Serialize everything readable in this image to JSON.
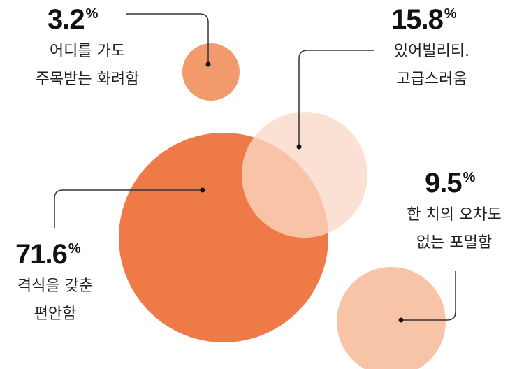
{
  "chart_data": {
    "type": "bubble",
    "unit": "%",
    "items": [
      {
        "value": 3.2,
        "value_label": "3.2",
        "lines": [
          "어디를 가도",
          "주목받는 화려함"
        ],
        "color": "#f19a6c"
      },
      {
        "value": 15.8,
        "value_label": "15.8",
        "lines": [
          "있어빌리티.",
          "고급스러움"
        ],
        "color": "#fbe1d3"
      },
      {
        "value": 71.6,
        "value_label": "71.6",
        "lines": [
          "격식을 갖춘",
          "편안함"
        ],
        "color": "#ee7a48"
      },
      {
        "value": 9.5,
        "value_label": "9.5",
        "lines": [
          "한 치의 오차도",
          "없는 포멀함"
        ],
        "color": "#f7c4a8"
      }
    ],
    "overlap_color": "#f8c3a6",
    "line_color": "#333333"
  }
}
